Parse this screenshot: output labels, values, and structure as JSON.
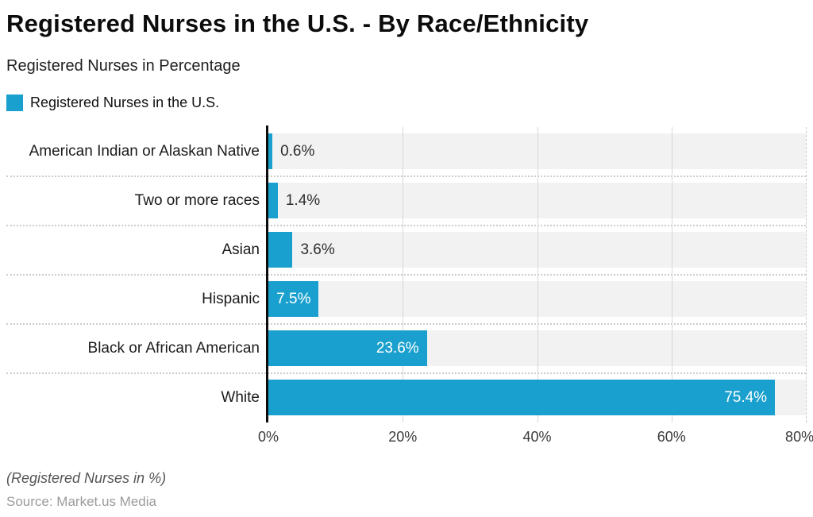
{
  "header": {
    "title": "Registered Nurses in the U.S. - By Race/Ethnicity",
    "subtitle": "Registered Nurses in Percentage"
  },
  "legend": {
    "label": "Registered Nurses in the U.S.",
    "swatch_color": "#1AA0CE"
  },
  "chart_data": {
    "type": "bar",
    "orientation": "horizontal",
    "title": "Registered Nurses in the U.S. - By Race/Ethnicity",
    "series_name": "Registered Nurses in the U.S.",
    "categories": [
      "American Indian or Alaskan Native",
      "Two or more races",
      "Asian",
      "Hispanic",
      "Black or African American",
      "White"
    ],
    "values": [
      0.6,
      1.4,
      3.6,
      7.5,
      23.6,
      75.4
    ],
    "value_labels": [
      "0.6%",
      "1.4%",
      "3.6%",
      "7.5%",
      "23.6%",
      "75.4%"
    ],
    "x_ticks": [
      "0%",
      "20%",
      "40%",
      "60%",
      "80%"
    ],
    "xlim": [
      0,
      80
    ],
    "xlabel": "",
    "ylabel": "",
    "grid": true,
    "legend_position": "top-left",
    "bar_color": "#1AA0CE",
    "track_color": "#f2f2f2"
  },
  "footer": {
    "caption": "(Registered Nurses in %)",
    "source": "Source: Market.us Media"
  }
}
